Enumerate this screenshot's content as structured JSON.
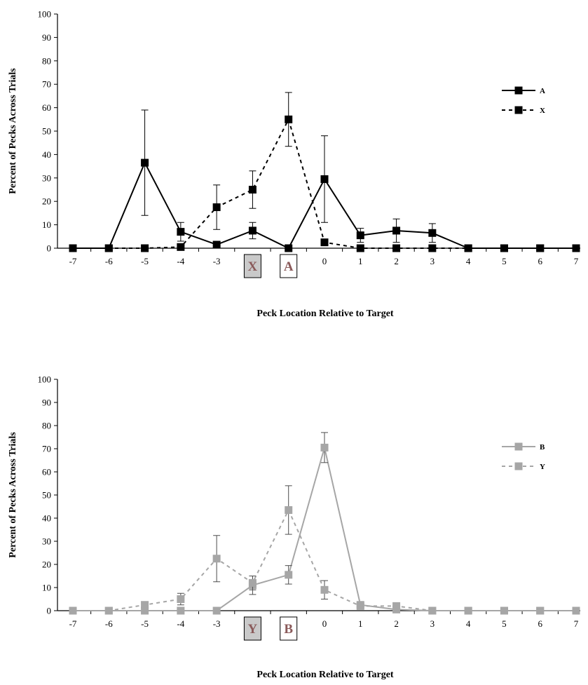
{
  "chart_data": [
    {
      "type": "line",
      "ylabel": "Percent of Pecks Across Trials",
      "xlabel": "Peck Location Relative to Target",
      "ylim": [
        0,
        100
      ],
      "yticks": [
        0,
        10,
        20,
        30,
        40,
        50,
        60,
        70,
        80,
        90,
        100
      ],
      "x": [
        -7,
        -6,
        -5,
        -4,
        -3,
        -2,
        -1,
        0,
        1,
        2,
        3,
        4,
        5,
        6,
        7
      ],
      "legend_position": "right",
      "series": [
        {
          "name": "A",
          "style": "solid",
          "color": "#000000",
          "values": [
            0,
            0,
            36.5,
            7,
            1.5,
            7.5,
            0,
            29.5,
            5.5,
            7.5,
            6.5,
            0,
            0,
            0,
            0
          ],
          "errors": [
            0,
            0,
            22.5,
            4,
            0,
            3.5,
            0,
            18.5,
            3,
            5,
            4,
            0,
            0,
            0,
            0
          ]
        },
        {
          "name": "X",
          "style": "dashed",
          "color": "#000000",
          "values": [
            0,
            0,
            0,
            0.5,
            17.5,
            25,
            55,
            2.5,
            0,
            0,
            0,
            0,
            0,
            0,
            0
          ],
          "errors": [
            0,
            0,
            0,
            0,
            9.5,
            8,
            11.5,
            0,
            0,
            0,
            0,
            0,
            0,
            0,
            0
          ]
        }
      ],
      "markers_below_axis": [
        {
          "label": "X",
          "x": -2,
          "filled": true
        },
        {
          "label": "A",
          "x": -1,
          "filled": false
        }
      ]
    },
    {
      "type": "line",
      "ylabel": "Percent of Pecks Across Trials",
      "xlabel": "Peck Location Relative to Target",
      "ylim": [
        0,
        100
      ],
      "yticks": [
        0,
        10,
        20,
        30,
        40,
        50,
        60,
        70,
        80,
        90,
        100
      ],
      "x": [
        -7,
        -6,
        -5,
        -4,
        -3,
        -2,
        -1,
        0,
        1,
        2,
        3,
        4,
        5,
        6,
        7
      ],
      "legend_position": "right",
      "series": [
        {
          "name": "B",
          "style": "solid",
          "color": "#a6a6a6",
          "values": [
            0,
            0,
            0,
            0,
            0,
            11,
            15.5,
            70.5,
            2.5,
            0.5,
            0,
            0,
            0,
            0,
            0
          ],
          "errors": [
            0,
            0,
            0,
            0,
            0,
            4,
            4,
            6.5,
            0,
            0,
            0,
            0,
            0,
            0,
            0
          ]
        },
        {
          "name": "Y",
          "style": "dashed",
          "color": "#a6a6a6",
          "values": [
            0,
            0,
            2.5,
            5,
            22.5,
            12,
            43.5,
            9,
            2,
            2,
            0,
            0,
            0,
            0,
            0
          ],
          "errors": [
            0,
            0,
            0,
            2.5,
            10,
            3,
            10.5,
            4,
            0,
            0,
            0,
            0,
            0,
            0,
            0
          ]
        }
      ],
      "markers_below_axis": [
        {
          "label": "Y",
          "x": -2,
          "filled": true
        },
        {
          "label": "B",
          "x": -1,
          "filled": false
        }
      ]
    }
  ]
}
